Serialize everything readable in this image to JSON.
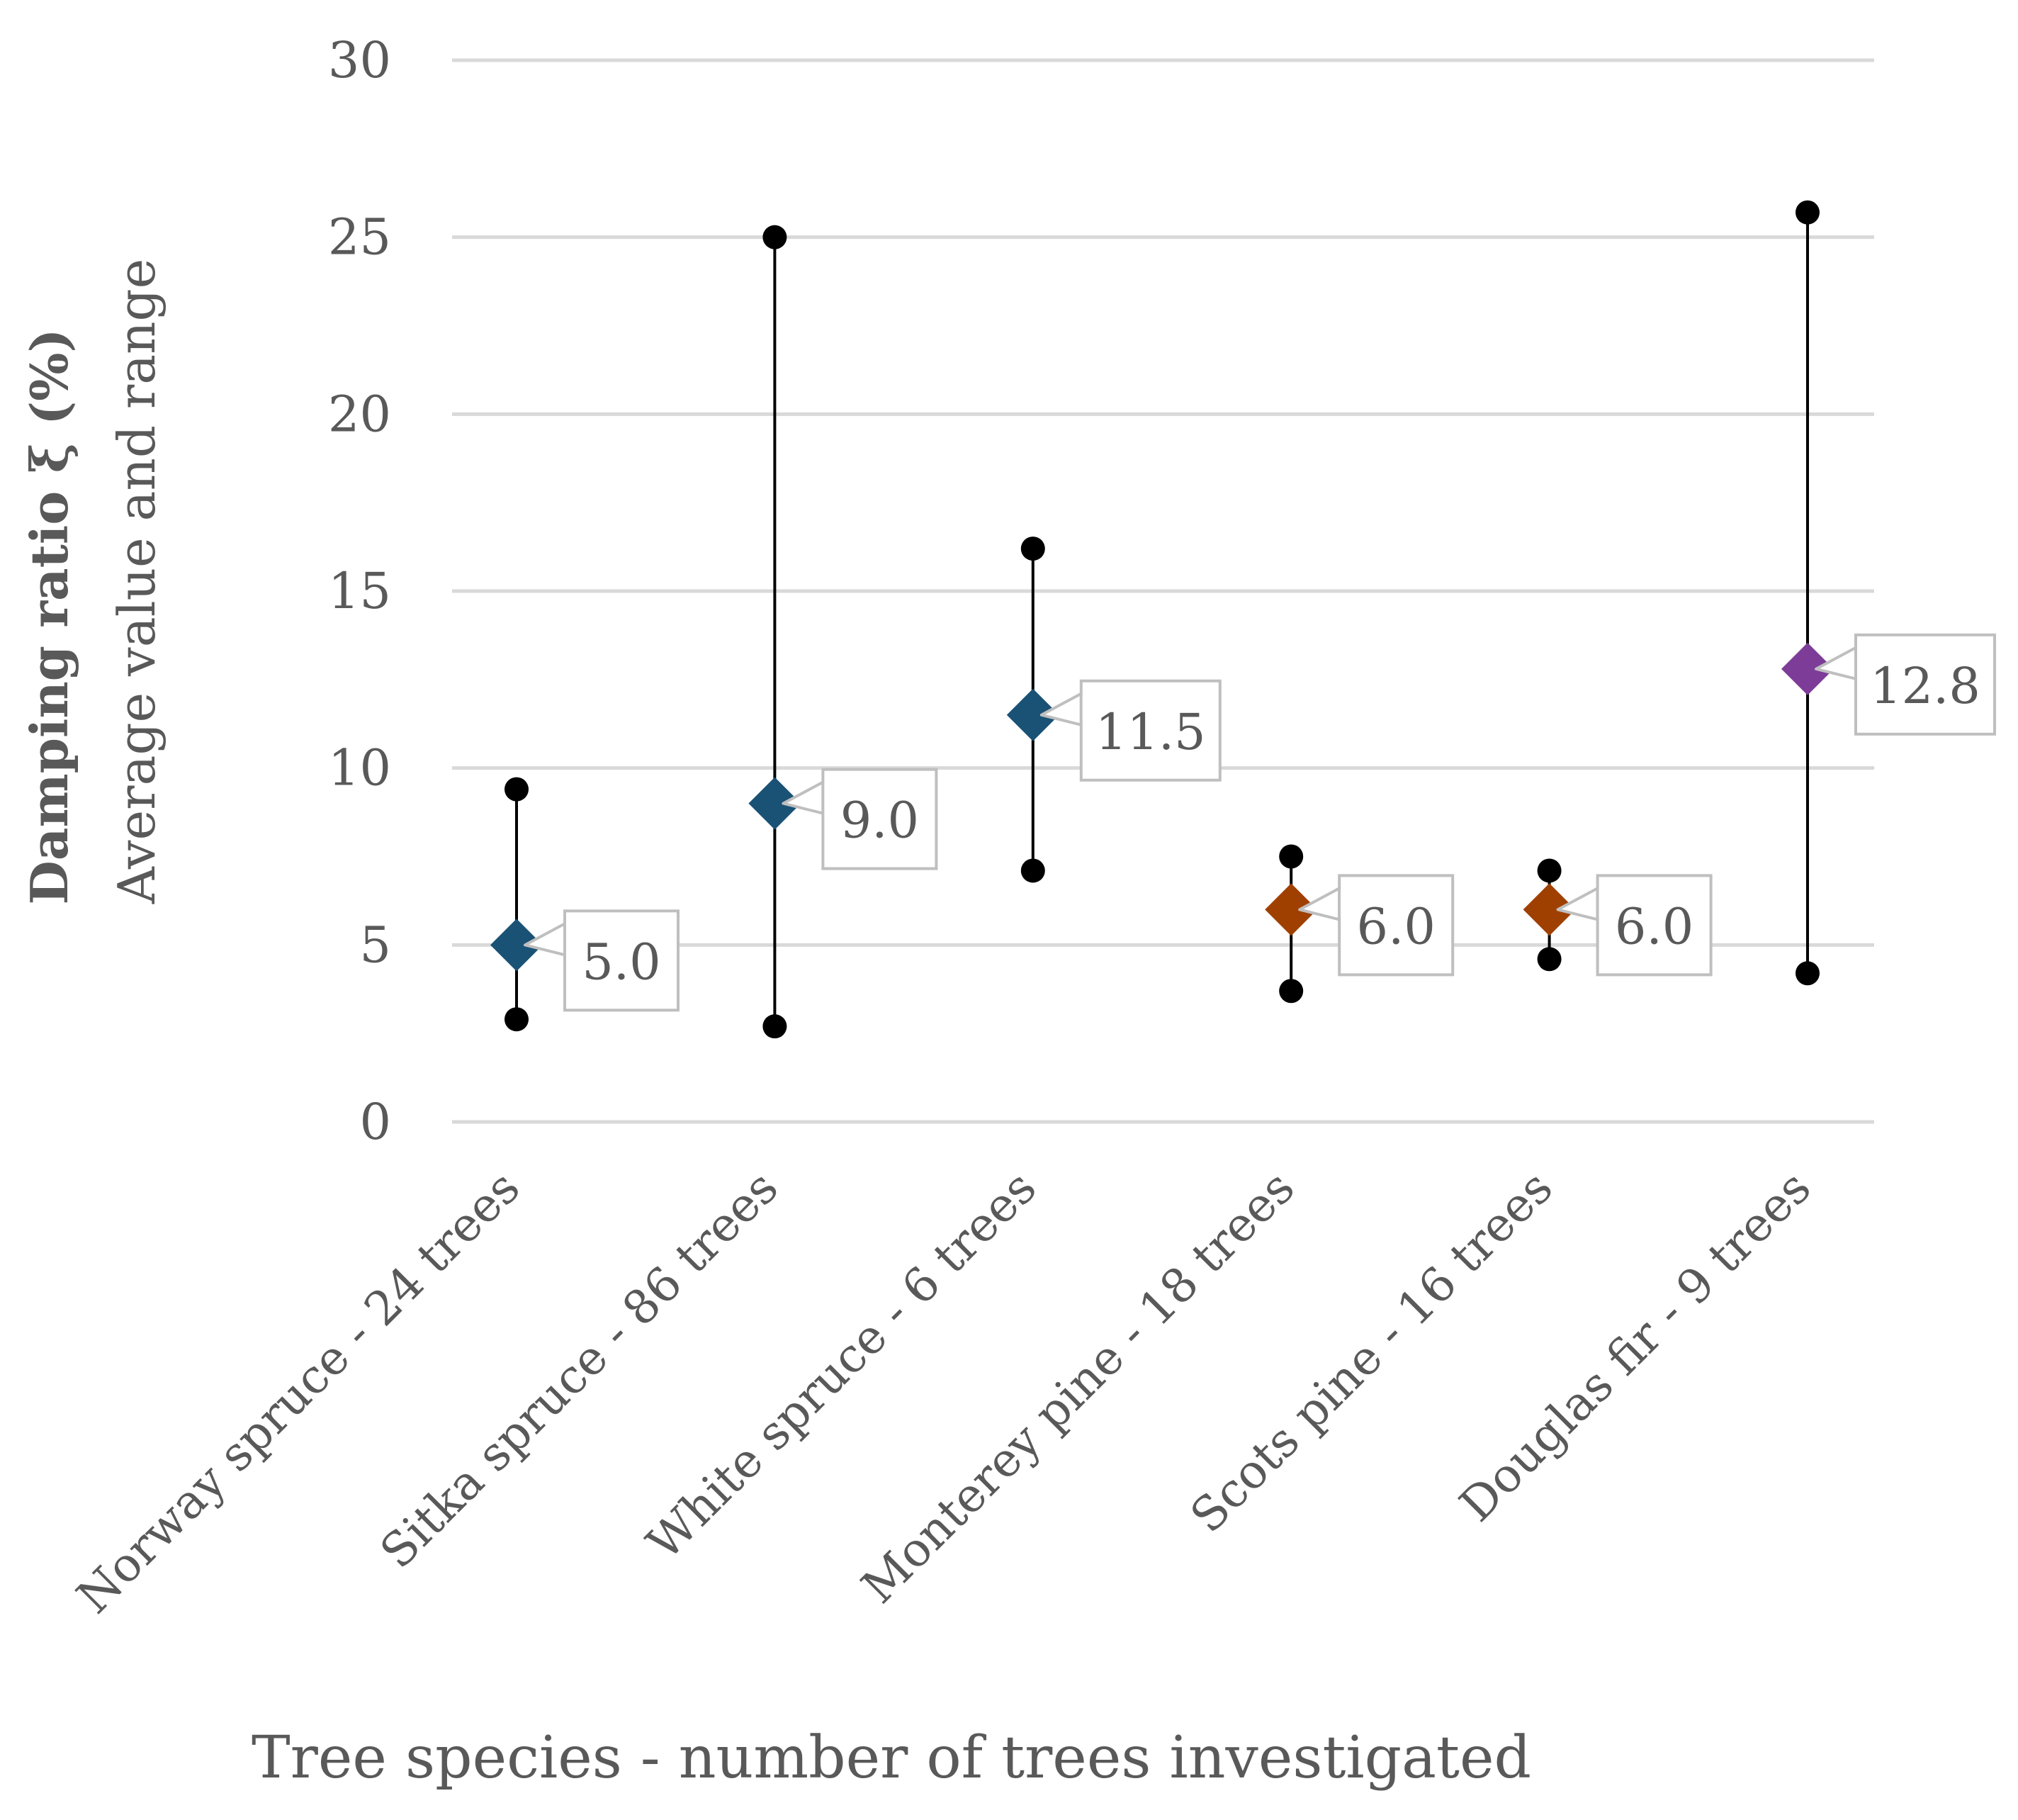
{
  "chart_data": {
    "type": "range-marker",
    "title": "",
    "xlabel": "Tree species - number of trees investigated",
    "ylabel_main": "Damping ratio ξ (%)",
    "ylabel_sub": "Average value and range",
    "ylim": [
      0,
      30
    ],
    "yticks": [
      0,
      5,
      10,
      15,
      20,
      25,
      30
    ],
    "grid": true,
    "categories": [
      "Norway spruce - 24 trees",
      "Sitka spruce - 86 trees",
      "White spruce - 6 trees",
      "Monterey pine - 18 trees",
      "Scots pine - 16 trees",
      "Douglas fir - 9 trees"
    ],
    "series": [
      {
        "name": "Average",
        "values": [
          5.0,
          9.0,
          11.5,
          6.0,
          6.0,
          12.8
        ]
      },
      {
        "name": "Minimum",
        "values": [
          2.9,
          2.7,
          7.1,
          3.7,
          4.6,
          4.2
        ]
      },
      {
        "name": "Maximum",
        "values": [
          9.4,
          25.0,
          16.2,
          7.5,
          7.1,
          25.7
        ]
      }
    ],
    "data_labels": [
      "5.0",
      "9.0",
      "11.5",
      "6.0",
      "6.0",
      "12.8"
    ],
    "marker_colors": [
      "#1a5276",
      "#1a5276",
      "#1a5276",
      "#a04000",
      "#a04000",
      "#7d3c98"
    ]
  },
  "colors": {
    "grid": "#d9d9d9",
    "text": "#595959",
    "range": "#000000",
    "label_border": "#bfbfbf"
  }
}
